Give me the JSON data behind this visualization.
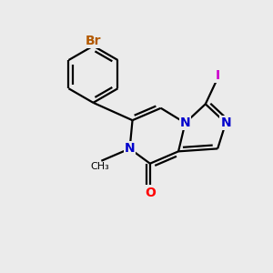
{
  "background_color": "#ebebeb",
  "bond_color": "#000000",
  "bond_width": 1.6,
  "atom_labels": {
    "Br": {
      "color": "#b35900",
      "fontsize": 10,
      "fontweight": "bold"
    },
    "N": {
      "color": "#0000cc",
      "fontsize": 10,
      "fontweight": "bold"
    },
    "O": {
      "color": "#ff0000",
      "fontsize": 10,
      "fontweight": "bold"
    },
    "I": {
      "color": "#cc00cc",
      "fontsize": 10,
      "fontweight": "bold"
    }
  },
  "figsize": [
    3.0,
    3.0
  ],
  "dpi": 100
}
